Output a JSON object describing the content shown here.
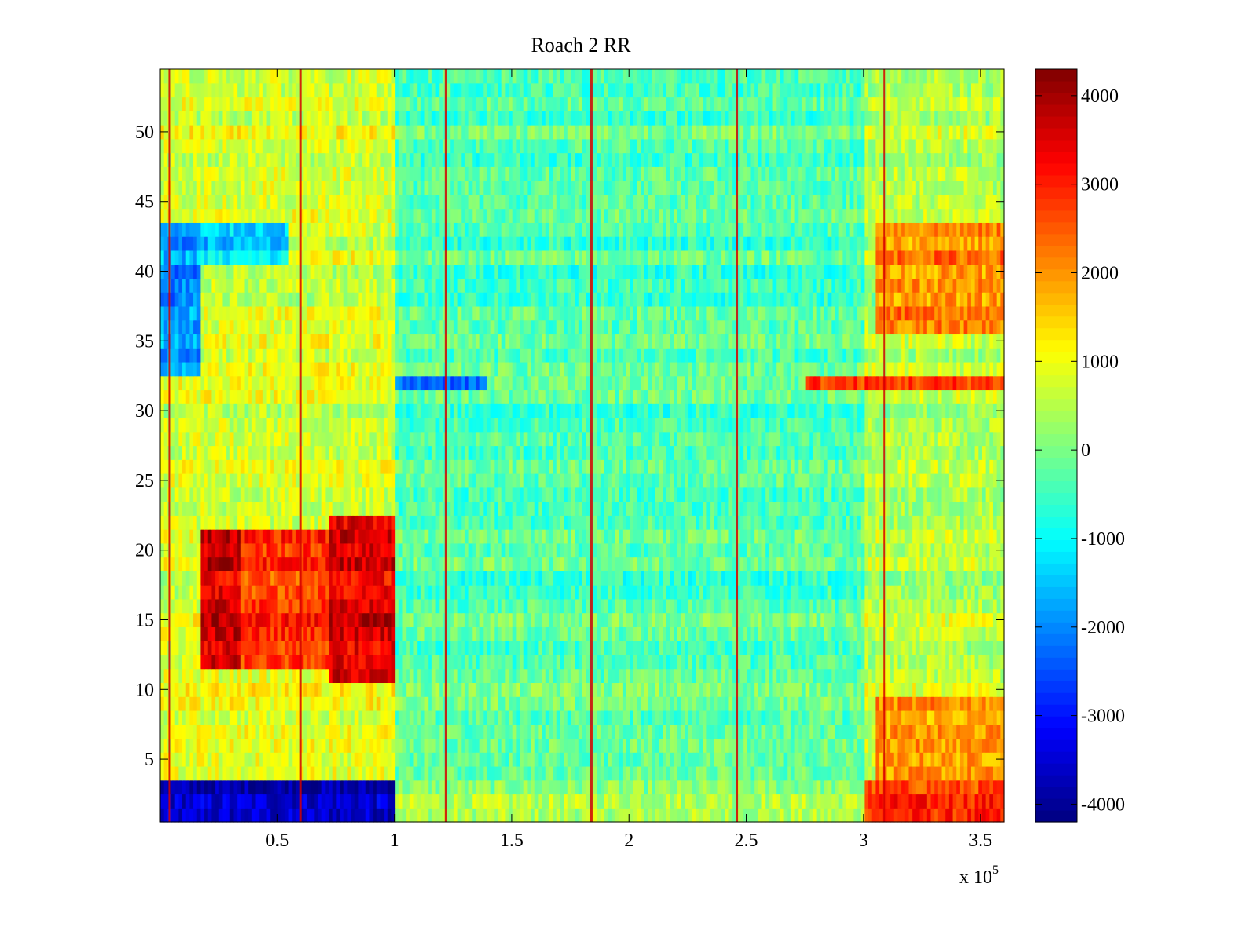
{
  "chart_data": {
    "type": "heatmap",
    "title": "Roach 2 RR",
    "xlabel": "",
    "ylabel": "",
    "x_multiplier_label": "x 10",
    "x_multiplier_exponent": "5",
    "xlim": [
      0,
      3.6
    ],
    "ylim": [
      0.5,
      54.5
    ],
    "x_tick_values": [
      0.5,
      1,
      1.5,
      2,
      2.5,
      3,
      3.5
    ],
    "x_tick_labels": [
      "0.5",
      "1",
      "1.5",
      "2",
      "2.5",
      "3",
      "3.5"
    ],
    "y_tick_values": [
      5,
      10,
      15,
      20,
      25,
      30,
      35,
      40,
      45,
      50
    ],
    "y_tick_labels": [
      "5",
      "10",
      "15",
      "20",
      "25",
      "30",
      "35",
      "40",
      "45",
      "50"
    ],
    "rows": 54,
    "colormap": "jet",
    "clim": [
      -4200,
      4300
    ],
    "colorbar_tick_values": [
      4000,
      3000,
      2000,
      1000,
      0,
      -1000,
      -2000,
      -3000,
      -4000
    ],
    "colorbar_tick_labels": [
      "4000",
      "3000",
      "2000",
      "1000",
      "0",
      "-1000",
      "-2000",
      "-3000",
      "-4000"
    ],
    "vertical_stripes_x": [
      0.04,
      0.6,
      1.22,
      1.84,
      2.46,
      3.09
    ],
    "regions": [
      {
        "x": [
          0.0,
          1.0
        ],
        "rows": [
          1,
          3
        ],
        "value": -3700
      },
      {
        "x": [
          1.0,
          3.0
        ],
        "rows": [
          1,
          3
        ],
        "value": 300
      },
      {
        "x": [
          3.0,
          3.6
        ],
        "rows": [
          1,
          3
        ],
        "value": 2800
      },
      {
        "x": [
          0.17,
          0.35
        ],
        "rows": [
          12,
          21
        ],
        "value": 3600
      },
      {
        "x": [
          0.35,
          0.72
        ],
        "rows": [
          12,
          21
        ],
        "value": 2800
      },
      {
        "x": [
          0.72,
          1.0
        ],
        "rows": [
          11,
          22
        ],
        "value": 3500
      },
      {
        "x": [
          0.0,
          0.17
        ],
        "rows": [
          33,
          43
        ],
        "value": -1800
      },
      {
        "x": [
          0.17,
          0.55
        ],
        "rows": [
          41,
          43
        ],
        "value": -1300
      },
      {
        "x": [
          1.0,
          1.4
        ],
        "rows": [
          32,
          32
        ],
        "value": -2400
      },
      {
        "x": [
          2.75,
          3.6
        ],
        "rows": [
          32,
          32
        ],
        "value": 2600
      },
      {
        "x": [
          3.05,
          3.6
        ],
        "rows": [
          36,
          43
        ],
        "value": 2200
      },
      {
        "x": [
          3.05,
          3.6
        ],
        "rows": [
          4,
          9
        ],
        "value": 1800
      },
      {
        "x": [
          1.0,
          3.0
        ],
        "rows": [
          4,
          54
        ],
        "value": -300
      }
    ]
  }
}
